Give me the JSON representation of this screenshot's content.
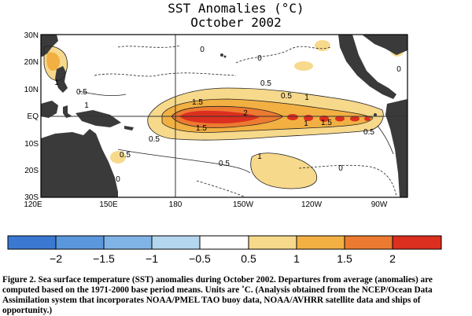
{
  "title": "SST Anomalies (°C)",
  "subtitle": "October 2002",
  "map": {
    "lat_labels": [
      "30N",
      "20N",
      "10N",
      "EQ",
      "10S",
      "20S",
      "30S"
    ],
    "lon_labels": [
      "120E",
      "150E",
      "180",
      "150W",
      "120W",
      "90W"
    ],
    "contour_labels": [
      "1",
      "0.5",
      "1",
      "0",
      "0.5",
      "0.5",
      "1.5",
      "2",
      "1",
      "1",
      "1.5",
      "1.5",
      "0.5",
      "0.5",
      "0.5",
      "1",
      "0",
      "0.5",
      "0",
      "0",
      "0"
    ],
    "colors": {
      "land": "#3a3a3a",
      "ocean": "#ffffff"
    }
  },
  "colorbar": {
    "tick_labels": [
      "−2",
      "−1.5",
      "−1",
      "−0.5",
      "0.5",
      "1",
      "1.5",
      "2"
    ],
    "colors": [
      "#3a78d2",
      "#5a97dd",
      "#80b4e6",
      "#b4d6ef",
      "#ffffff",
      "#f7d98c",
      "#f2b043",
      "#ec7a30",
      "#dc2f1f"
    ]
  },
  "caption": "Figure 2. Sea surface temperature (SST) anomalies during October 2002. Departures from average (anomalies) are computed based on the 1971-2000 base period means. Units are ˚C. (Analysis obtained from the NCEP/Ocean Data Assimilation system that incorporates NOAA/PMEL TAO buoy data, NOAA/AVHRR satellite data and ships of opportunity.)"
}
